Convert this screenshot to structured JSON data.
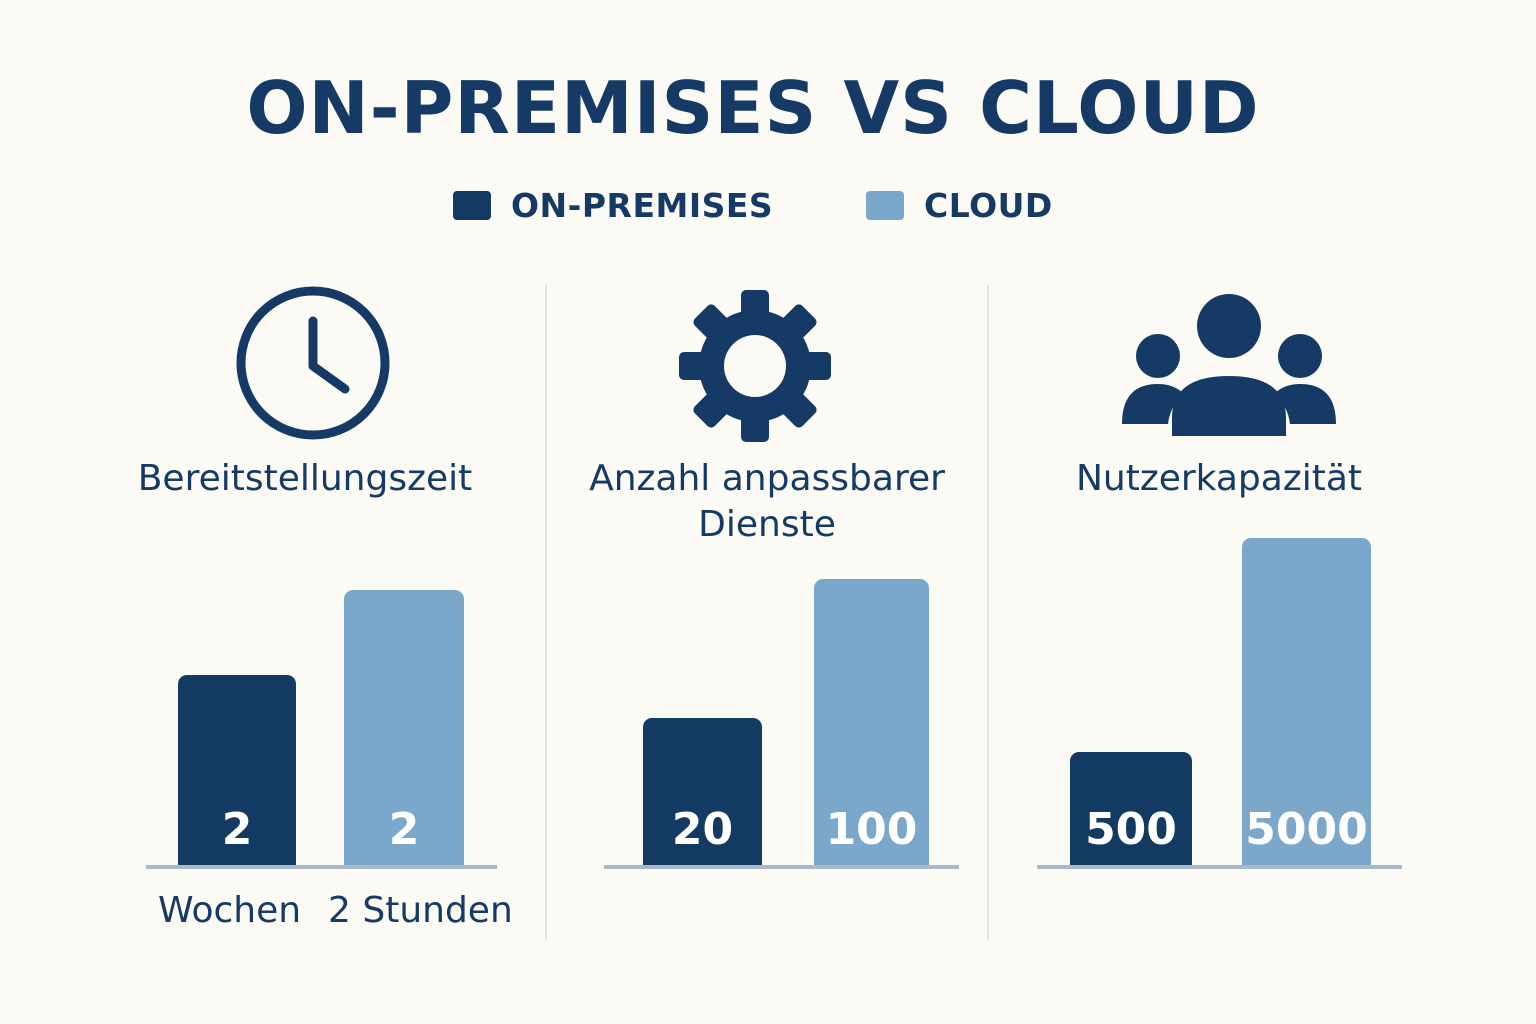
{
  "title": "ON-PREMISES VS CLOUD",
  "legend": [
    {
      "label": "ON-PREMISES",
      "color": "#133a62"
    },
    {
      "label": "CLOUD",
      "color": "#7ba8ca"
    }
  ],
  "colors": {
    "on_premises": "#133a62",
    "cloud": "#7ba8ca",
    "text": "#163a66"
  },
  "chart_data": [
    {
      "type": "bar",
      "title": "Bereitstellungszeit",
      "icon": "clock-icon",
      "series": [
        {
          "name": "ON-PREMISES",
          "value": 2,
          "label": "2",
          "unit": "Wochen"
        },
        {
          "name": "CLOUD",
          "value": 2,
          "label": "2",
          "unit": "2 Stunden"
        }
      ]
    },
    {
      "type": "bar",
      "title": "Anzahl anpassbarer\nDienste",
      "icon": "gear-icon",
      "series": [
        {
          "name": "ON-PREMISES",
          "value": 20,
          "label": "20"
        },
        {
          "name": "CLOUD",
          "value": 100,
          "label": "100"
        }
      ]
    },
    {
      "type": "bar",
      "title": "Nutzerkapazität",
      "icon": "users-icon",
      "series": [
        {
          "name": "ON-PREMISES",
          "value": 500,
          "label": "500"
        },
        {
          "name": "CLOUD",
          "value": 5000,
          "label": "5000"
        }
      ]
    }
  ]
}
